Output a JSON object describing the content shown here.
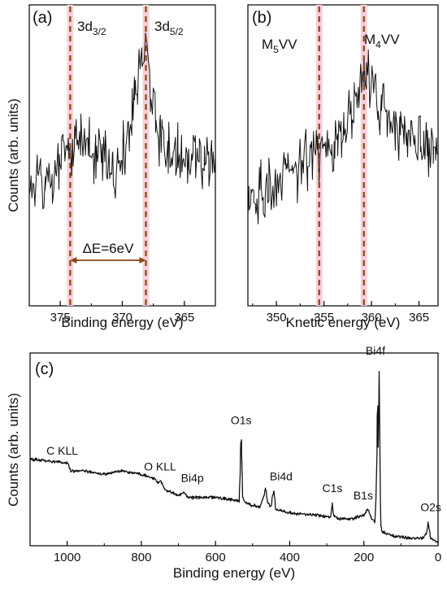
{
  "colors": {
    "trace": "#111111",
    "marker": "#8B4513",
    "band": "#f6d0d8",
    "arrow": "#8B4513"
  },
  "chart_data": [
    {
      "type": "line",
      "panel_label": "(a)",
      "xlabel": "Binding energy (eV)",
      "ylabel": "Counts (arb. units)",
      "xlim": [
        377.5,
        362.5
      ],
      "x_reversed": true,
      "xticks": [
        375,
        370,
        365
      ],
      "xtick_labels": [
        "375",
        "370",
        "365"
      ],
      "grid": false,
      "markers": [
        {
          "x": 374.2,
          "label_main": "3d",
          "label_sub": "3/2"
        },
        {
          "x": 368.1,
          "label_main": "3d",
          "label_sub": "5/2"
        }
      ],
      "spacing_annotation": {
        "from": 374.2,
        "to": 368.1,
        "label": "ΔE=6eV"
      },
      "series": [
        {
          "profile": [
            [
              377.5,
              0.4
            ],
            [
              375.5,
              0.43
            ],
            [
              374.6,
              0.53
            ],
            [
              374.2,
              0.5
            ],
            [
              373.5,
              0.55
            ],
            [
              372.0,
              0.47
            ],
            [
              370.5,
              0.46
            ],
            [
              369.5,
              0.55
            ],
            [
              368.8,
              0.72
            ],
            [
              368.4,
              0.86
            ],
            [
              368.0,
              0.82
            ],
            [
              367.6,
              0.66
            ],
            [
              367.0,
              0.56
            ],
            [
              366.0,
              0.5
            ],
            [
              364.0,
              0.48
            ],
            [
              362.5,
              0.47
            ]
          ],
          "noise": 0.09
        }
      ]
    },
    {
      "type": "line",
      "panel_label": "(b)",
      "xlabel": "Knetic energy (eV)",
      "ylabel": "",
      "xlim": [
        347,
        367
      ],
      "x_reversed": false,
      "xticks": [
        350,
        355,
        360,
        365
      ],
      "xtick_labels": [
        "350",
        "355",
        "360",
        "365"
      ],
      "grid": false,
      "markers": [
        {
          "x": 354.5,
          "label_main": "M",
          "label_sub": "5",
          "label_tail": "VV"
        },
        {
          "x": 359.2,
          "label_main": "M",
          "label_sub": "4",
          "label_tail": "VV"
        }
      ],
      "series": [
        {
          "profile": [
            [
              347,
              0.36
            ],
            [
              350,
              0.4
            ],
            [
              352,
              0.45
            ],
            [
              354,
              0.5
            ],
            [
              355,
              0.54
            ],
            [
              357,
              0.58
            ],
            [
              358.5,
              0.7
            ],
            [
              359.3,
              0.8
            ],
            [
              360.2,
              0.72
            ],
            [
              361.5,
              0.62
            ],
            [
              363,
              0.58
            ],
            [
              365,
              0.55
            ],
            [
              367,
              0.54
            ]
          ],
          "noise": 0.09
        }
      ]
    },
    {
      "type": "line",
      "panel_label": "(c)",
      "xlabel": "Binding energy (eV)",
      "ylabel": "Counts (arb. units)",
      "xlim": [
        1100,
        0
      ],
      "x_reversed": true,
      "xticks": [
        1000,
        800,
        600,
        400,
        200,
        0
      ],
      "xtick_labels": [
        "1000",
        "800",
        "600",
        "400",
        "200",
        "0"
      ],
      "grid": false,
      "peak_labels": [
        {
          "x": 1000,
          "text": "C KLL"
        },
        {
          "x": 745,
          "text": "O KLL"
        },
        {
          "x": 680,
          "text": "Bi4p"
        },
        {
          "x": 531,
          "text": "O1s"
        },
        {
          "x": 445,
          "text": "Bi4d"
        },
        {
          "x": 285,
          "text": "C1s"
        },
        {
          "x": 193,
          "text": "B1s"
        },
        {
          "x": 160,
          "text": "Bi4f"
        },
        {
          "x": 24,
          "text": "O2s"
        }
      ],
      "series": [
        {
          "profile": [
            [
              1100,
              0.45
            ],
            [
              1000,
              0.43
            ],
            [
              990,
              0.39
            ],
            [
              960,
              0.39
            ],
            [
              900,
              0.37
            ],
            [
              850,
              0.39
            ],
            [
              800,
              0.37
            ],
            [
              765,
              0.35
            ],
            [
              755,
              0.33
            ],
            [
              748,
              0.34
            ],
            [
              742,
              0.31
            ],
            [
              735,
              0.29
            ],
            [
              700,
              0.26
            ],
            [
              686,
              0.28
            ],
            [
              680,
              0.27
            ],
            [
              675,
              0.25
            ],
            [
              640,
              0.25
            ],
            [
              600,
              0.25
            ],
            [
              560,
              0.24
            ],
            [
              540,
              0.235
            ],
            [
              536,
              0.23
            ],
            [
              533,
              0.45
            ],
            [
              531,
              0.58
            ],
            [
              529,
              0.47
            ],
            [
              527,
              0.25
            ],
            [
              520,
              0.22
            ],
            [
              480,
              0.2
            ],
            [
              468,
              0.27
            ],
            [
              465,
              0.3
            ],
            [
              460,
              0.23
            ],
            [
              450,
              0.2
            ],
            [
              445,
              0.27
            ],
            [
              442,
              0.28
            ],
            [
              438,
              0.19
            ],
            [
              400,
              0.17
            ],
            [
              330,
              0.16
            ],
            [
              300,
              0.15
            ],
            [
              290,
              0.15
            ],
            [
              287,
              0.19
            ],
            [
              285,
              0.22
            ],
            [
              283,
              0.16
            ],
            [
              270,
              0.14
            ],
            [
              230,
              0.14
            ],
            [
              200,
              0.16
            ],
            [
              190,
              0.19
            ],
            [
              182,
              0.15
            ],
            [
              170,
              0.12
            ],
            [
              166,
              0.32
            ],
            [
              163,
              0.8
            ],
            [
              161,
              0.45
            ],
            [
              159,
              0.94
            ],
            [
              157,
              0.4
            ],
            [
              154,
              0.1
            ],
            [
              150,
              0.07
            ],
            [
              120,
              0.05
            ],
            [
              80,
              0.04
            ],
            [
              40,
              0.04
            ],
            [
              30,
              0.07
            ],
            [
              27,
              0.12
            ],
            [
              24,
              0.08
            ],
            [
              20,
              0.04
            ],
            [
              0,
              0.02
            ]
          ],
          "noise": 0.007
        }
      ]
    }
  ]
}
